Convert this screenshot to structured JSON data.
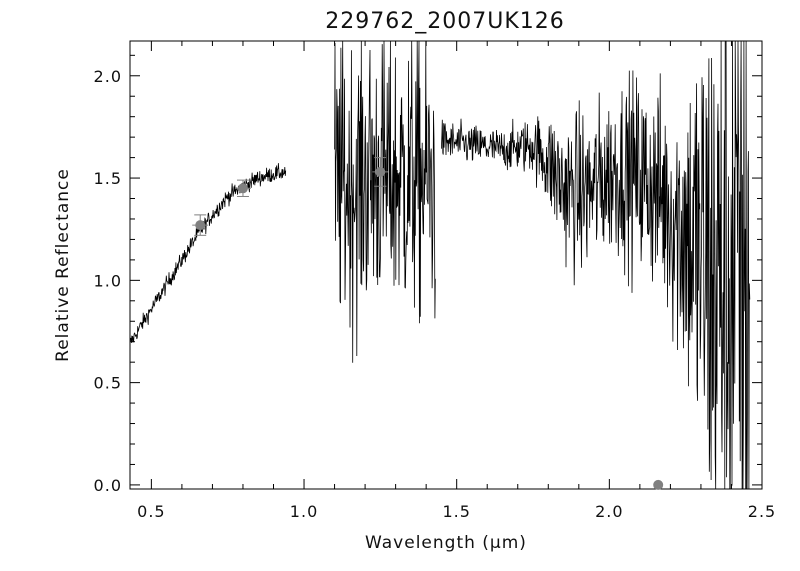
{
  "chart_data": {
    "type": "line",
    "title": "229762_2007UK126",
    "xlabel": "Wavelength (μm)",
    "ylabel": "Relative Reflectance",
    "xlim": [
      0.43,
      2.5
    ],
    "ylim": [
      -0.02,
      2.17
    ],
    "x_ticks": [
      0.5,
      1.0,
      1.5,
      2.0,
      2.5
    ],
    "x_tick_labels": [
      "0.5",
      "1.0",
      "1.5",
      "2.0",
      "2.5"
    ],
    "y_ticks": [
      0.0,
      0.5,
      1.0,
      1.5,
      2.0
    ],
    "y_tick_labels": [
      "0.0",
      "0.5",
      "1.0",
      "1.5",
      "2.0"
    ],
    "grid": false,
    "colors": {
      "spectrum": "#000000",
      "photometry": "#808080",
      "axes": "#000000"
    },
    "series": [
      {
        "segments": [
          {
            "x": [
              0.43,
              0.45,
              0.5,
              0.55,
              0.6,
              0.65,
              0.7,
              0.75,
              0.8,
              0.85,
              0.9,
              0.94
            ],
            "y": [
              0.69,
              0.74,
              0.86,
              0.98,
              1.1,
              1.22,
              1.32,
              1.41,
              1.46,
              1.5,
              1.52,
              1.53
            ],
            "noise": 0.02
          },
          {
            "x": [
              1.1,
              1.15,
              1.2,
              1.25,
              1.3,
              1.35,
              1.4,
              1.43
            ],
            "y": [
              1.45,
              1.47,
              1.5,
              1.52,
              1.5,
              1.5,
              1.5,
              1.45
            ],
            "noise": 0.35
          },
          {
            "x": [
              1.45,
              1.5,
              1.55,
              1.6,
              1.65,
              1.7,
              1.75,
              1.8,
              1.85,
              1.9,
              1.95,
              2.0,
              2.05,
              2.1,
              2.15,
              2.2,
              2.25,
              2.3,
              2.35,
              2.4,
              2.46
            ],
            "y": [
              1.68,
              1.67,
              1.66,
              1.65,
              1.64,
              1.65,
              1.66,
              1.58,
              1.45,
              1.42,
              1.45,
              1.52,
              1.55,
              1.5,
              1.45,
              1.35,
              1.25,
              1.1,
              1.0,
              1.0,
              1.05
            ],
            "noise": [
              0.05,
              0.05,
              0.05,
              0.05,
              0.05,
              0.06,
              0.07,
              0.12,
              0.18,
              0.2,
              0.2,
              0.2,
              0.22,
              0.25,
              0.25,
              0.3,
              0.4,
              0.6,
              0.8,
              0.9,
              1.0
            ]
          }
        ]
      },
      {
        "type": "scatter",
        "x": [
          0.66,
          0.8,
          1.25,
          2.16
        ],
        "y": [
          1.27,
          1.45,
          1.53,
          0.0
        ],
        "yerr": [
          0.05,
          0.04,
          0.07,
          0.0
        ]
      }
    ]
  }
}
